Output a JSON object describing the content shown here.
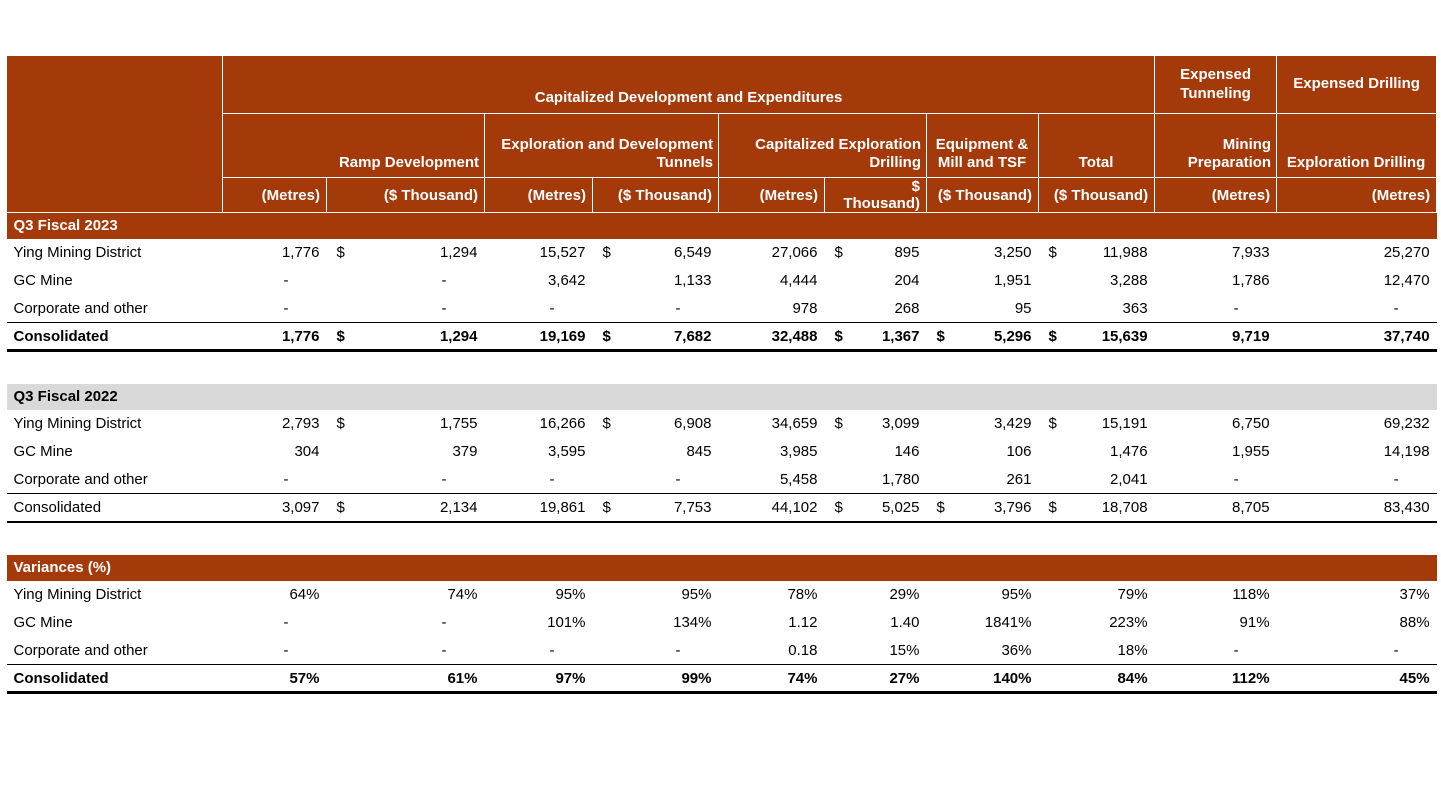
{
  "colors": {
    "header_brown": "#A43A0A",
    "band_gray": "#D9D9D9",
    "text_on_brown": "#FFFFFF"
  },
  "chart_data": {
    "type": "table",
    "title": "Capitalized Development and Expenditures",
    "top_headers": {
      "capdev": "Capitalized Development and Expenditures",
      "expensed_tunneling": "Expensed Tunneling",
      "expensed_drilling": "Expensed Drilling"
    },
    "group_headers": [
      "Ramp Development",
      "Exploration and Development Tunnels",
      "Capitalized Exploration Drilling",
      "Equipment & Mill and TSF",
      "Total",
      "Mining Preparation",
      "Exploration Drilling"
    ],
    "units": [
      "(Metres)",
      "($ Thousand)",
      "(Metres)",
      "($ Thousand)",
      "(Metres)",
      "$ Thousand)",
      "($ Thousand)",
      "($ Thousand)",
      "(Metres)",
      "(Metres)"
    ],
    "sections": [
      {
        "title": "Q3 Fiscal 2023",
        "style": "brown",
        "rows": [
          {
            "label": "Ying Mining District",
            "bold": false,
            "border": "none",
            "cells": [
              "1,776",
              "1,294",
              "15,527",
              "6,549",
              "27,066",
              "895",
              "3,250",
              "11,988",
              "7,933",
              "25,270"
            ],
            "dollars": [
              1,
              3,
              5,
              7
            ]
          },
          {
            "label": "GC Mine",
            "bold": false,
            "border": "none",
            "cells": [
              "-",
              "-",
              "3,642",
              "1,133",
              "4,444",
              "204",
              "1,951",
              "3,288",
              "1,786",
              "12,470"
            ],
            "dollars": []
          },
          {
            "label": "Corporate and other",
            "bold": false,
            "border": "thin",
            "cells": [
              "-",
              "-",
              "-",
              "-",
              "978",
              "268",
              "95",
              "363",
              "-",
              "-"
            ],
            "dollars": []
          },
          {
            "label": "Consolidated",
            "bold": true,
            "border": "thick",
            "cells": [
              "1,776",
              "1,294",
              "19,169",
              "7,682",
              "32,488",
              "1,367",
              "5,296",
              "15,639",
              "9,719",
              "37,740"
            ],
            "dollars": [
              1,
              3,
              5,
              6,
              7
            ]
          }
        ]
      },
      {
        "title": "Q3 Fiscal 2022",
        "style": "gray",
        "rows": [
          {
            "label": "Ying Mining District",
            "bold": false,
            "border": "none",
            "cells": [
              "2,793",
              "1,755",
              "16,266",
              "6,908",
              "34,659",
              "3,099",
              "3,429",
              "15,191",
              "6,750",
              "69,232"
            ],
            "dollars": [
              1,
              3,
              5,
              7
            ]
          },
          {
            "label": "GC Mine",
            "bold": false,
            "border": "none",
            "cells": [
              "304",
              "379",
              "3,595",
              "845",
              "3,985",
              "146",
              "106",
              "1,476",
              "1,955",
              "14,198"
            ],
            "dollars": []
          },
          {
            "label": "Corporate and other",
            "bold": false,
            "border": "thin",
            "cells": [
              "-",
              "-",
              "-",
              "-",
              "5,458",
              "1,780",
              "261",
              "2,041",
              "-",
              "-"
            ],
            "dollars": []
          },
          {
            "label": "Consolidated",
            "bold": false,
            "border": "medium",
            "cells": [
              "3,097",
              "2,134",
              "19,861",
              "7,753",
              "44,102",
              "5,025",
              "3,796",
              "18,708",
              "8,705",
              "83,430"
            ],
            "dollars": [
              1,
              3,
              5,
              6,
              7
            ]
          }
        ]
      },
      {
        "title": "Variances (%)",
        "style": "brown",
        "rows": [
          {
            "label": "Ying Mining District",
            "bold": false,
            "border": "none",
            "cells": [
              "64%",
              "74%",
              "95%",
              "95%",
              "78%",
              "29%",
              "95%",
              "79%",
              "118%",
              "37%"
            ],
            "dollars": []
          },
          {
            "label": "GC Mine",
            "bold": false,
            "border": "none",
            "cells": [
              "-",
              "-",
              "101%",
              "134%",
              "1.12",
              "1.40",
              "1841%",
              "223%",
              "91%",
              "88%"
            ],
            "dollars": []
          },
          {
            "label": "Corporate and other",
            "bold": false,
            "border": "thin",
            "cells": [
              "-",
              "-",
              "-",
              "-",
              "0.18",
              "15%",
              "36%",
              "18%",
              "-",
              "-"
            ],
            "dollars": []
          },
          {
            "label": "Consolidated",
            "bold": true,
            "border": "xthick",
            "cells": [
              "57%",
              "61%",
              "97%",
              "99%",
              "74%",
              "27%",
              "140%",
              "84%",
              "112%",
              "45%"
            ],
            "dollars": []
          }
        ]
      }
    ]
  }
}
